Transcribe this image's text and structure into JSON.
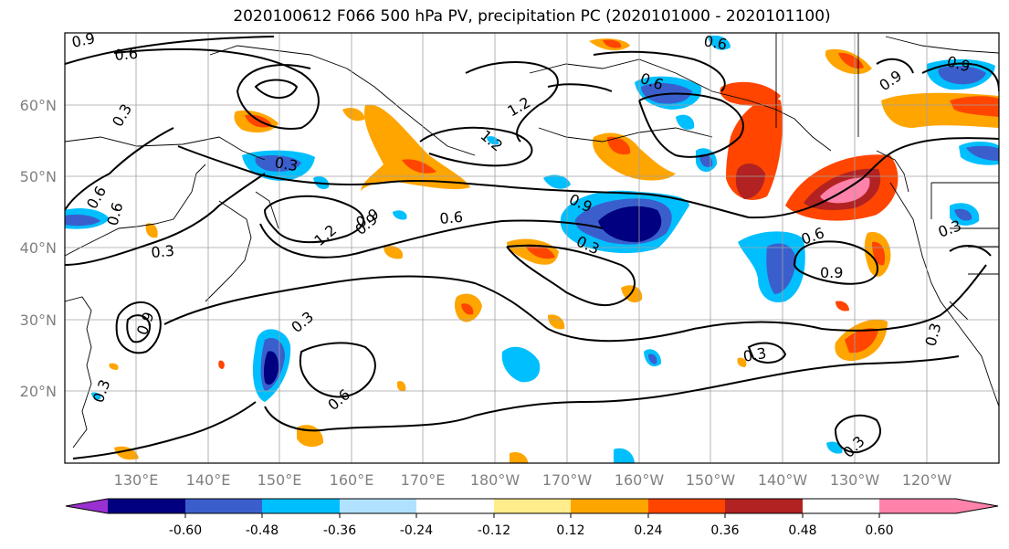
{
  "title": "2020100612 F066 500 hPa PV, precipitation PC (2020101000 - 2020101100)",
  "map": {
    "lat_labels": [
      "60°N",
      "50°N",
      "40°N",
      "30°N",
      "20°N"
    ],
    "lon_labels": [
      "130°E",
      "140°E",
      "150°E",
      "160°E",
      "170°E",
      "180°W",
      "170°W",
      "160°W",
      "150°W",
      "140°W",
      "130°W",
      "120°W"
    ],
    "contour_labels": [
      "0.9",
      "0.6",
      "0.3",
      "0.3",
      "1.2",
      "1.2",
      "0.6",
      "0.9",
      "0.6",
      "0.3",
      "0.9",
      "0.6",
      "0.6",
      "0.3",
      "0.9",
      "1.2",
      "0.9",
      "0.6",
      "0.3",
      "0.6",
      "0.9",
      "0.3",
      "0.6",
      "0.3",
      "0.3",
      "0.3",
      "0.9",
      "0.9",
      "0.3"
    ]
  },
  "colorbar": {
    "ticks": [
      "-0.60",
      "-0.48",
      "-0.36",
      "-0.24",
      "-0.12",
      "0.12",
      "0.24",
      "0.36",
      "0.48",
      "0.60"
    ],
    "colors": [
      "#9b30d0",
      "#000080",
      "#3a5fcd",
      "#00bfff",
      "#b0e2ff",
      "#ffffff",
      "#ffec8b",
      "#ffa500",
      "#ff4500",
      "#b22222",
      "#ff82ab"
    ]
  }
}
